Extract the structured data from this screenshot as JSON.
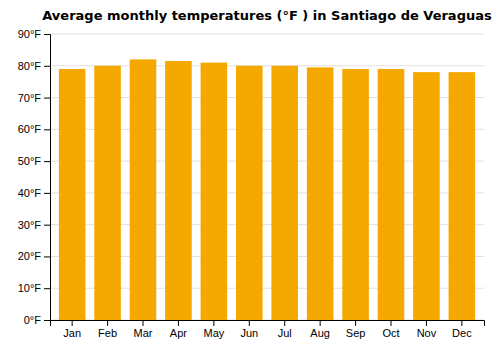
{
  "chart_data": {
    "type": "bar",
    "title": "Average monthly temperatures (°F ) in Santiago de Veraguas",
    "categories": [
      "Jan",
      "Feb",
      "Mar",
      "Apr",
      "May",
      "Jun",
      "Jul",
      "Aug",
      "Sep",
      "Oct",
      "Nov",
      "Dec"
    ],
    "values": [
      79,
      80,
      82,
      81.5,
      81,
      80,
      80,
      79.5,
      79,
      79,
      78,
      78
    ],
    "color": "#F5A800",
    "ylim": [
      0,
      90
    ],
    "yticks": [
      {
        "value": 0,
        "label": "0°F"
      },
      {
        "value": 10,
        "label": "10°F"
      },
      {
        "value": 20,
        "label": "20°F"
      },
      {
        "value": 30,
        "label": "30°F"
      },
      {
        "value": 40,
        "label": "40°F"
      },
      {
        "value": 50,
        "label": "50°F"
      },
      {
        "value": 60,
        "label": "60°F"
      },
      {
        "value": 70,
        "label": "70°F"
      },
      {
        "value": 80,
        "label": "80°F"
      },
      {
        "value": 90,
        "label": "90°F"
      }
    ],
    "grid": true
  }
}
